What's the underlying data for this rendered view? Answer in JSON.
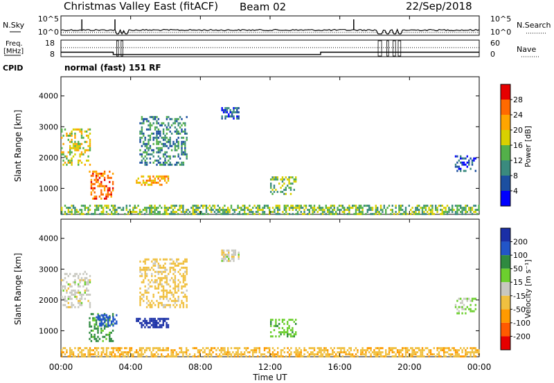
{
  "header": {
    "title": "Christmas Valley East (fitACF)",
    "beam": "Beam 02",
    "date": "22/Sep/2018"
  },
  "chart_data": [
    {
      "type": "line",
      "panel": "noise",
      "left_label": "N.Sky",
      "right_label": "N.Search",
      "yticks_left": [
        "10^5",
        "10^0"
      ],
      "yticks_right": [
        "10^5",
        "10^0"
      ],
      "sky_level": 0.25,
      "search_level": 0.12,
      "spikes_hours": [
        1.2,
        3.1,
        16.8
      ],
      "gaps_hours": [
        [
          3.2,
          3.3
        ],
        [
          3.45,
          3.55
        ],
        [
          3.7,
          3.85
        ],
        [
          18.2,
          18.4
        ],
        [
          18.7,
          18.8
        ],
        [
          19.05,
          19.2
        ],
        [
          19.35,
          19.5
        ]
      ]
    },
    {
      "type": "line",
      "panel": "frequency",
      "left_label": "Freq. [MHz]",
      "right_label": "Nave",
      "yticks_left": [
        "18",
        "8"
      ],
      "yticks_right": [
        "60",
        "0"
      ],
      "ylim_left": [
        8,
        18
      ],
      "ylim_right": [
        0,
        60
      ],
      "nave_level": 33,
      "freq_segments": [
        {
          "x0": 0,
          "x1": 3.0,
          "y": 10.5
        },
        {
          "x0": 3.0,
          "x1": 3.1,
          "y": 9.0
        },
        {
          "x0": 3.1,
          "x1": 14.9,
          "y": 9.0
        },
        {
          "x0": 14.9,
          "x1": 18.3,
          "y": 10.5
        },
        {
          "x0": 18.3,
          "x1": 24,
          "y": 10.5
        }
      ]
    },
    {
      "type": "heatmap",
      "panel": "power",
      "cpid_label": "CPID",
      "cpid_text": "normal (fast) 151 RF",
      "ylabel": "Slant Range [km]",
      "yticks": [
        "1000",
        "2000",
        "3000",
        "4000"
      ],
      "ylim": [
        180,
        4600
      ],
      "xlim": [
        0,
        24
      ],
      "colorbar": {
        "label": "Power [dB]",
        "ticks": [
          "4",
          "8",
          "12",
          "16",
          "20",
          "24",
          "28"
        ],
        "colors": [
          "#0000ff",
          "#1c4fa0",
          "#3a8a7e",
          "#53b04a",
          "#d8d000",
          "#ffa500",
          "#ff6a00",
          "#e60000"
        ]
      },
      "regions": [
        {
          "t0": 0.0,
          "t1": 1.7,
          "r0": 1800,
          "r1": 3000,
          "level": 4
        },
        {
          "t0": 1.6,
          "t1": 3.0,
          "r0": 700,
          "r1": 1600,
          "level": 6
        },
        {
          "t0": 4.3,
          "t1": 6.2,
          "r0": 1150,
          "r1": 1450,
          "level": 5
        },
        {
          "t0": 4.5,
          "t1": 7.2,
          "r0": 1800,
          "r1": 3400,
          "level": 2
        },
        {
          "t0": 9.2,
          "t1": 10.2,
          "r0": 3300,
          "r1": 3650,
          "level": 1
        },
        {
          "t0": 12.0,
          "t1": 13.5,
          "r0": 850,
          "r1": 1450,
          "level": 3
        },
        {
          "t0": 0.0,
          "t1": 24.0,
          "r0": 200,
          "r1": 500,
          "level": 3
        },
        {
          "t0": 22.6,
          "t1": 23.8,
          "r0": 1600,
          "r1": 2100,
          "level": 1
        }
      ]
    },
    {
      "type": "heatmap",
      "panel": "velocity",
      "ylabel": "Slant Range [km]",
      "yticks": [
        "1000",
        "2000",
        "3000",
        "4000"
      ],
      "ylim": [
        180,
        4600
      ],
      "xlim": [
        0,
        24
      ],
      "xticks": [
        "00:00",
        "04:00",
        "08:00",
        "12:00",
        "16:00",
        "20:00",
        "00:00"
      ],
      "xlabel": "Time UT",
      "colorbar": {
        "label": "Velocity [m s-1]",
        "ticks": [
          "200",
          "100",
          "50",
          "15",
          "-15",
          "-50",
          "-100",
          "-200"
        ],
        "colors": [
          "#1a2fa6",
          "#2255c8",
          "#2f8a40",
          "#6ccf2e",
          "#c8c8c0",
          "#f0c040",
          "#ff9a00",
          "#ff5a00",
          "#e60000"
        ]
      },
      "regions": [
        {
          "t0": 0.0,
          "t1": 1.7,
          "r0": 1800,
          "r1": 3000,
          "v": 0
        },
        {
          "t0": 1.6,
          "t1": 3.0,
          "r0": 700,
          "r1": 1600,
          "v": 60
        },
        {
          "t0": 2.0,
          "t1": 3.2,
          "r0": 1200,
          "r1": 1600,
          "v": 180
        },
        {
          "t0": 4.3,
          "t1": 6.2,
          "r0": 1150,
          "r1": 1450,
          "v": 220
        },
        {
          "t0": 4.5,
          "t1": 7.2,
          "r0": 1800,
          "r1": 3400,
          "v": -30
        },
        {
          "t0": 9.2,
          "t1": 10.2,
          "r0": 3300,
          "r1": 3650,
          "v": 0
        },
        {
          "t0": 12.0,
          "t1": 13.5,
          "r0": 850,
          "r1": 1450,
          "v": 40
        },
        {
          "t0": 0.0,
          "t1": 24.0,
          "r0": 200,
          "r1": 500,
          "v": -40
        },
        {
          "t0": 22.6,
          "t1": 23.8,
          "r0": 1600,
          "r1": 2100,
          "v": 20
        }
      ]
    }
  ]
}
